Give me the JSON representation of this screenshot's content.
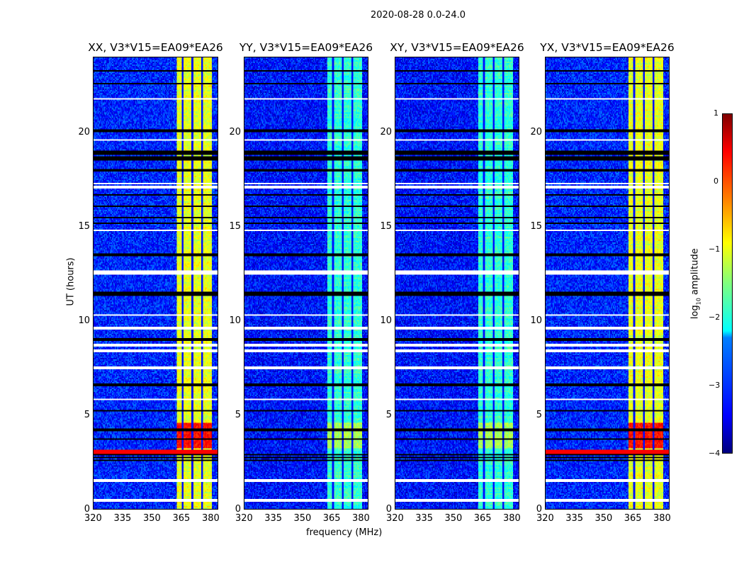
{
  "suptitle": "2020-08-28 0.0-24.0",
  "chart_data": [
    {
      "type": "heatmap",
      "title": "XX, V3*V15=EA09*EA26",
      "band_level": -1.0,
      "burst_level": 0.3,
      "bg_level": -3.2,
      "rfi_hours": [
        3.0,
        3.1
      ]
    },
    {
      "type": "heatmap",
      "title": "YY, V3*V15=EA09*EA26",
      "band_level": -1.9,
      "burst_level": -1.3,
      "bg_level": -3.3,
      "rfi_hours": []
    },
    {
      "type": "heatmap",
      "title": "XY, V3*V15=EA09*EA26",
      "band_level": -1.9,
      "burst_level": -1.3,
      "bg_level": -3.3,
      "rfi_hours": []
    },
    {
      "type": "heatmap",
      "title": "YX, V3*V15=EA09*EA26",
      "band_level": -1.0,
      "burst_level": 0.3,
      "bg_level": -3.2,
      "rfi_hours": [
        3.0,
        3.1
      ]
    }
  ],
  "common": {
    "xlabel": "frequency (MHz)",
    "ylabel": "UT (hours)",
    "xlim": [
      320,
      384
    ],
    "ylim": [
      0,
      24
    ],
    "xticks": [
      "320",
      "335",
      "350",
      "365",
      "380"
    ],
    "yticks": [
      "0",
      "5",
      "10",
      "15",
      "20"
    ],
    "band_mhz": [
      363,
      381
    ],
    "burst_hours": [
      3.2,
      4.6
    ],
    "flagged_white_hours": [
      0.45,
      1.5,
      5.8,
      7.5,
      8.4,
      8.7,
      9.6,
      10.3,
      12.5,
      12.6,
      14.8,
      17.1,
      17.3,
      19.6,
      21.8
    ],
    "flagged_black_hours": [
      2.6,
      2.75,
      2.9,
      3.7,
      4.2,
      5.2,
      6.6,
      9.0,
      11.4,
      11.5,
      13.5,
      15.2,
      15.5,
      16.1,
      16.7,
      18.0,
      18.6,
      18.7,
      18.9,
      19.0,
      20.1,
      22.6,
      23.3
    ]
  },
  "colorbar": {
    "label": "log10 amplitude",
    "range": [
      -4,
      1
    ],
    "ticks": [
      "1",
      "0",
      "−1",
      "−2",
      "−3",
      "−4"
    ],
    "colormap": "jet"
  }
}
